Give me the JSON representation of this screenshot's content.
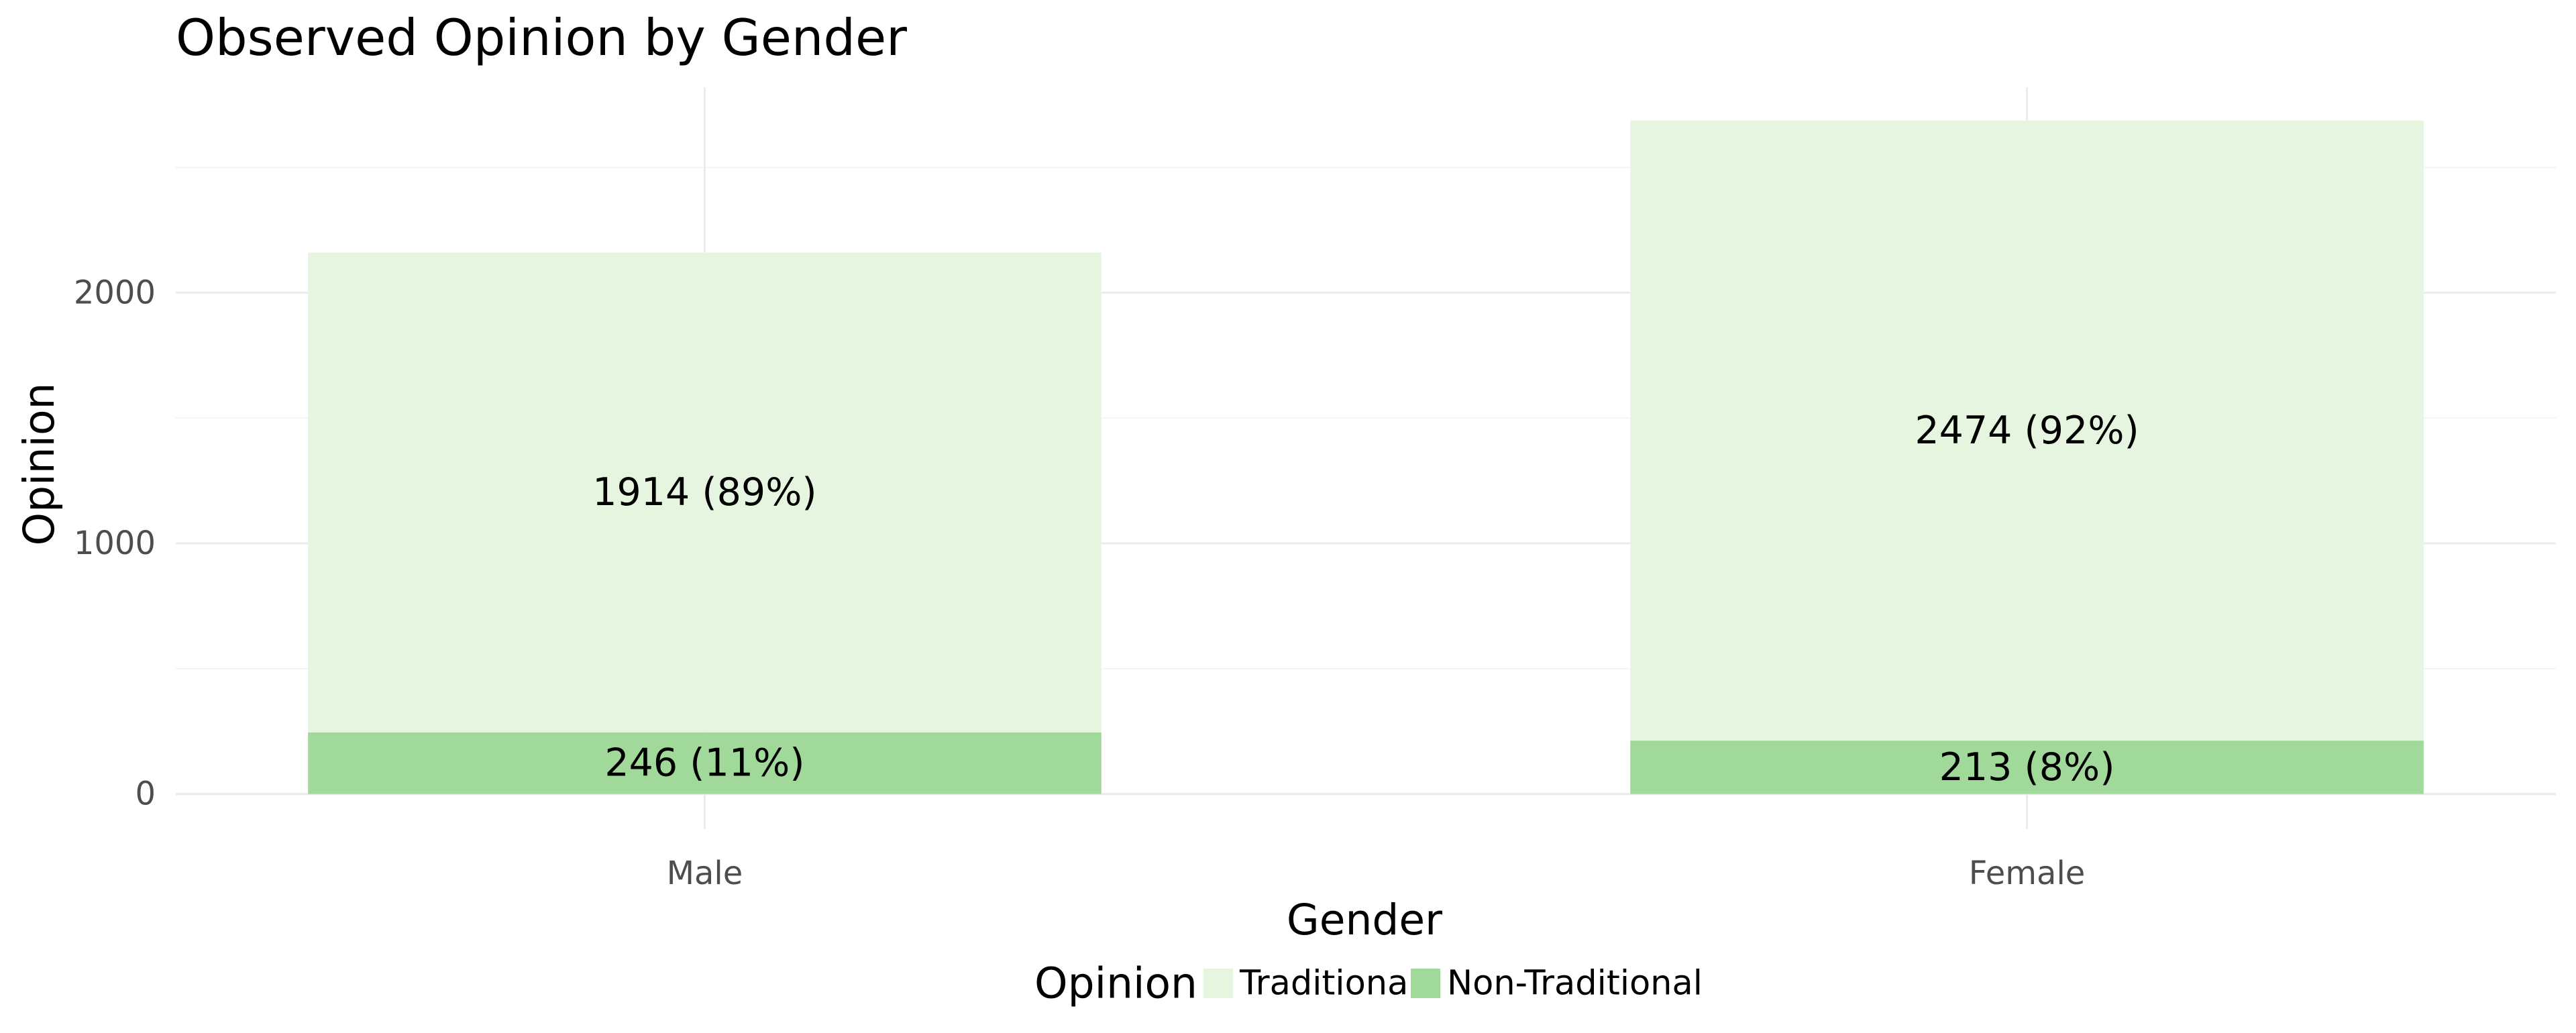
{
  "chart_data": {
    "type": "bar",
    "stacked": true,
    "title": "Observed Opinion by Gender",
    "xlabel": "Gender",
    "ylabel": "Opinion",
    "categories": [
      "Male",
      "Female"
    ],
    "series": [
      {
        "name": "Traditional",
        "color": "#e5f5e0",
        "values": [
          1914,
          2474
        ],
        "labels": [
          "1914 (89%)",
          "2474 (92%)"
        ]
      },
      {
        "name": "Non-Traditional",
        "color": "#a1d99b",
        "values": [
          246,
          213
        ],
        "labels": [
          "246 (11%)",
          "213 (8%)"
        ]
      }
    ],
    "y_ticks": [
      0,
      1000,
      2000
    ],
    "y_tick_labels": [
      "0",
      "1000",
      "2000"
    ],
    "ylim": [
      -140,
      2820
    ],
    "grid": true,
    "legend": {
      "title": "Opinion",
      "position": "bottom",
      "entries": [
        "Traditional",
        "Non-Traditional"
      ]
    }
  }
}
